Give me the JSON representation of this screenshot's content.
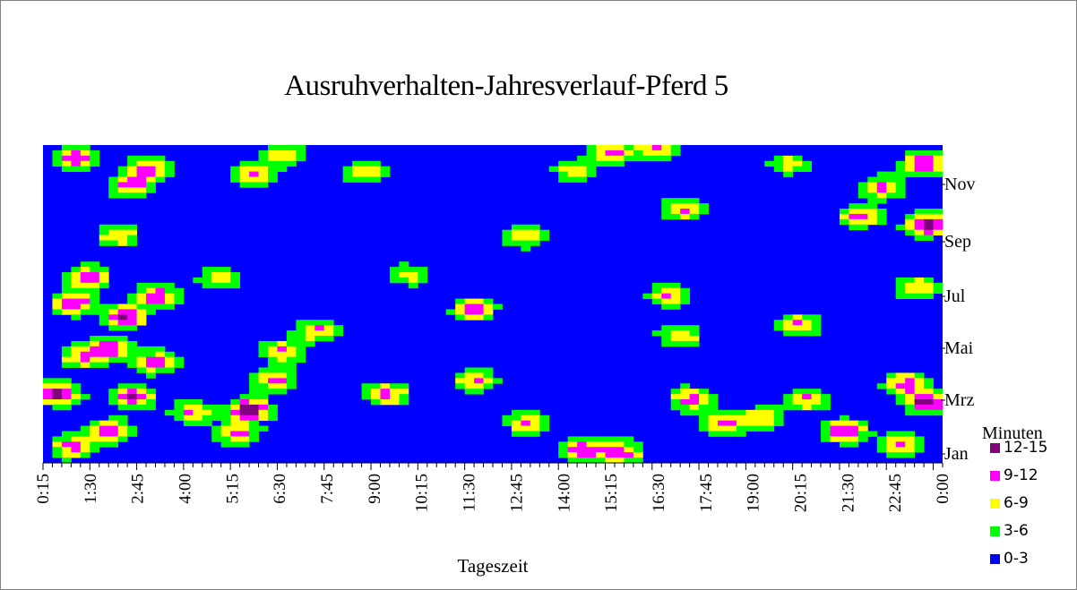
{
  "chart_data": {
    "type": "heatmap",
    "title": "Ausruhverhalten-Jahresverlauf-Pferd 5",
    "xlabel": "Tageszeit",
    "x_ticks": [
      "0:15",
      "1:30",
      "2:45",
      "4:00",
      "5:15",
      "6:30",
      "7:45",
      "9:00",
      "10:15",
      "11:30",
      "12:45",
      "14:00",
      "15:15",
      "16:30",
      "17:45",
      "19:00",
      "20:15",
      "21:30",
      "22:45",
      "0:00"
    ],
    "y_ticks": [
      "Jan",
      "Mrz",
      "Mai",
      "Jul",
      "Sep",
      "Nov"
    ],
    "legend": {
      "title": "Minuten",
      "items": [
        {
          "label": "12-15",
          "color": "#800080"
        },
        {
          "label": "9-12",
          "color": "#ff00ff"
        },
        {
          "label": "6-9",
          "color": "#ffff00"
        },
        {
          "label": "3-6",
          "color": "#00ff00"
        },
        {
          "label": "0-3",
          "color": "#0000ff"
        }
      ]
    },
    "hotspots_note": "",
    "hotspots": [
      {
        "time_h": 0.9,
        "month": 11.5,
        "level": 11
      },
      {
        "time_h": 2.8,
        "month": 11.1,
        "level": 10
      },
      {
        "time_h": 2.3,
        "month": 10.5,
        "level": 10
      },
      {
        "time_h": 2.0,
        "month": 8.6,
        "level": 9
      },
      {
        "time_h": 1.2,
        "month": 7.0,
        "level": 11
      },
      {
        "time_h": 0.8,
        "month": 6.0,
        "level": 12
      },
      {
        "time_h": 2.2,
        "month": 5.5,
        "level": 12
      },
      {
        "time_h": 3.0,
        "month": 6.3,
        "level": 11
      },
      {
        "time_h": 1.8,
        "month": 4.3,
        "level": 11
      },
      {
        "time_h": 0.4,
        "month": 2.6,
        "level": 13
      },
      {
        "time_h": 2.4,
        "month": 2.5,
        "level": 12
      },
      {
        "time_h": 1.8,
        "month": 1.2,
        "level": 11
      },
      {
        "time_h": 0.8,
        "month": 0.6,
        "level": 10
      },
      {
        "time_h": 5.5,
        "month": 2.0,
        "level": 14
      },
      {
        "time_h": 6.2,
        "month": 3.1,
        "level": 10
      },
      {
        "time_h": 6.4,
        "month": 4.2,
        "level": 9
      },
      {
        "time_h": 5.2,
        "month": 1.1,
        "level": 10
      },
      {
        "time_h": 4.0,
        "month": 1.9,
        "level": 9
      },
      {
        "time_h": 5.6,
        "month": 10.9,
        "level": 9
      },
      {
        "time_h": 6.4,
        "month": 11.6,
        "level": 8
      },
      {
        "time_h": 7.3,
        "month": 5.0,
        "level": 9
      },
      {
        "time_h": 9.2,
        "month": 2.6,
        "level": 10
      },
      {
        "time_h": 9.8,
        "month": 7.1,
        "level": 7
      },
      {
        "time_h": 11.5,
        "month": 5.8,
        "level": 10
      },
      {
        "time_h": 12.8,
        "month": 8.6,
        "level": 9
      },
      {
        "time_h": 11.5,
        "month": 3.1,
        "level": 9
      },
      {
        "time_h": 12.9,
        "month": 1.5,
        "level": 9
      },
      {
        "time_h": 14.4,
        "month": 0.5,
        "level": 11
      },
      {
        "time_h": 15.4,
        "month": 0.4,
        "level": 11
      },
      {
        "time_h": 15.2,
        "month": 11.7,
        "level": 10
      },
      {
        "time_h": 16.4,
        "month": 11.9,
        "level": 9
      },
      {
        "time_h": 17.1,
        "month": 9.6,
        "level": 9
      },
      {
        "time_h": 16.7,
        "month": 6.3,
        "level": 9
      },
      {
        "time_h": 17.0,
        "month": 4.8,
        "level": 9
      },
      {
        "time_h": 17.3,
        "month": 2.4,
        "level": 10
      },
      {
        "time_h": 18.2,
        "month": 1.5,
        "level": 10
      },
      {
        "time_h": 19.2,
        "month": 1.7,
        "level": 8
      },
      {
        "time_h": 20.2,
        "month": 5.2,
        "level": 9
      },
      {
        "time_h": 21.4,
        "month": 1.2,
        "level": 12
      },
      {
        "time_h": 20.4,
        "month": 2.4,
        "level": 9
      },
      {
        "time_h": 21.8,
        "month": 9.3,
        "level": 10
      },
      {
        "time_h": 22.4,
        "month": 10.4,
        "level": 10
      },
      {
        "time_h": 23.5,
        "month": 11.3,
        "level": 12
      },
      {
        "time_h": 23.6,
        "month": 9.0,
        "level": 14
      },
      {
        "time_h": 23.3,
        "month": 6.6,
        "level": 9
      },
      {
        "time_h": 23.6,
        "month": 2.3,
        "level": 13
      },
      {
        "time_h": 23.0,
        "month": 3.0,
        "level": 10
      },
      {
        "time_h": 22.9,
        "month": 0.7,
        "level": 9
      },
      {
        "time_h": 19.9,
        "month": 11.3,
        "level": 7
      },
      {
        "time_h": 8.6,
        "month": 11.0,
        "level": 8
      },
      {
        "time_h": 14.2,
        "month": 11.0,
        "level": 8
      },
      {
        "time_h": 4.7,
        "month": 7.0,
        "level": 8
      },
      {
        "time_h": 3.0,
        "month": 3.8,
        "level": 10
      },
      {
        "time_h": 1.0,
        "month": 4.0,
        "level": 9
      }
    ]
  }
}
